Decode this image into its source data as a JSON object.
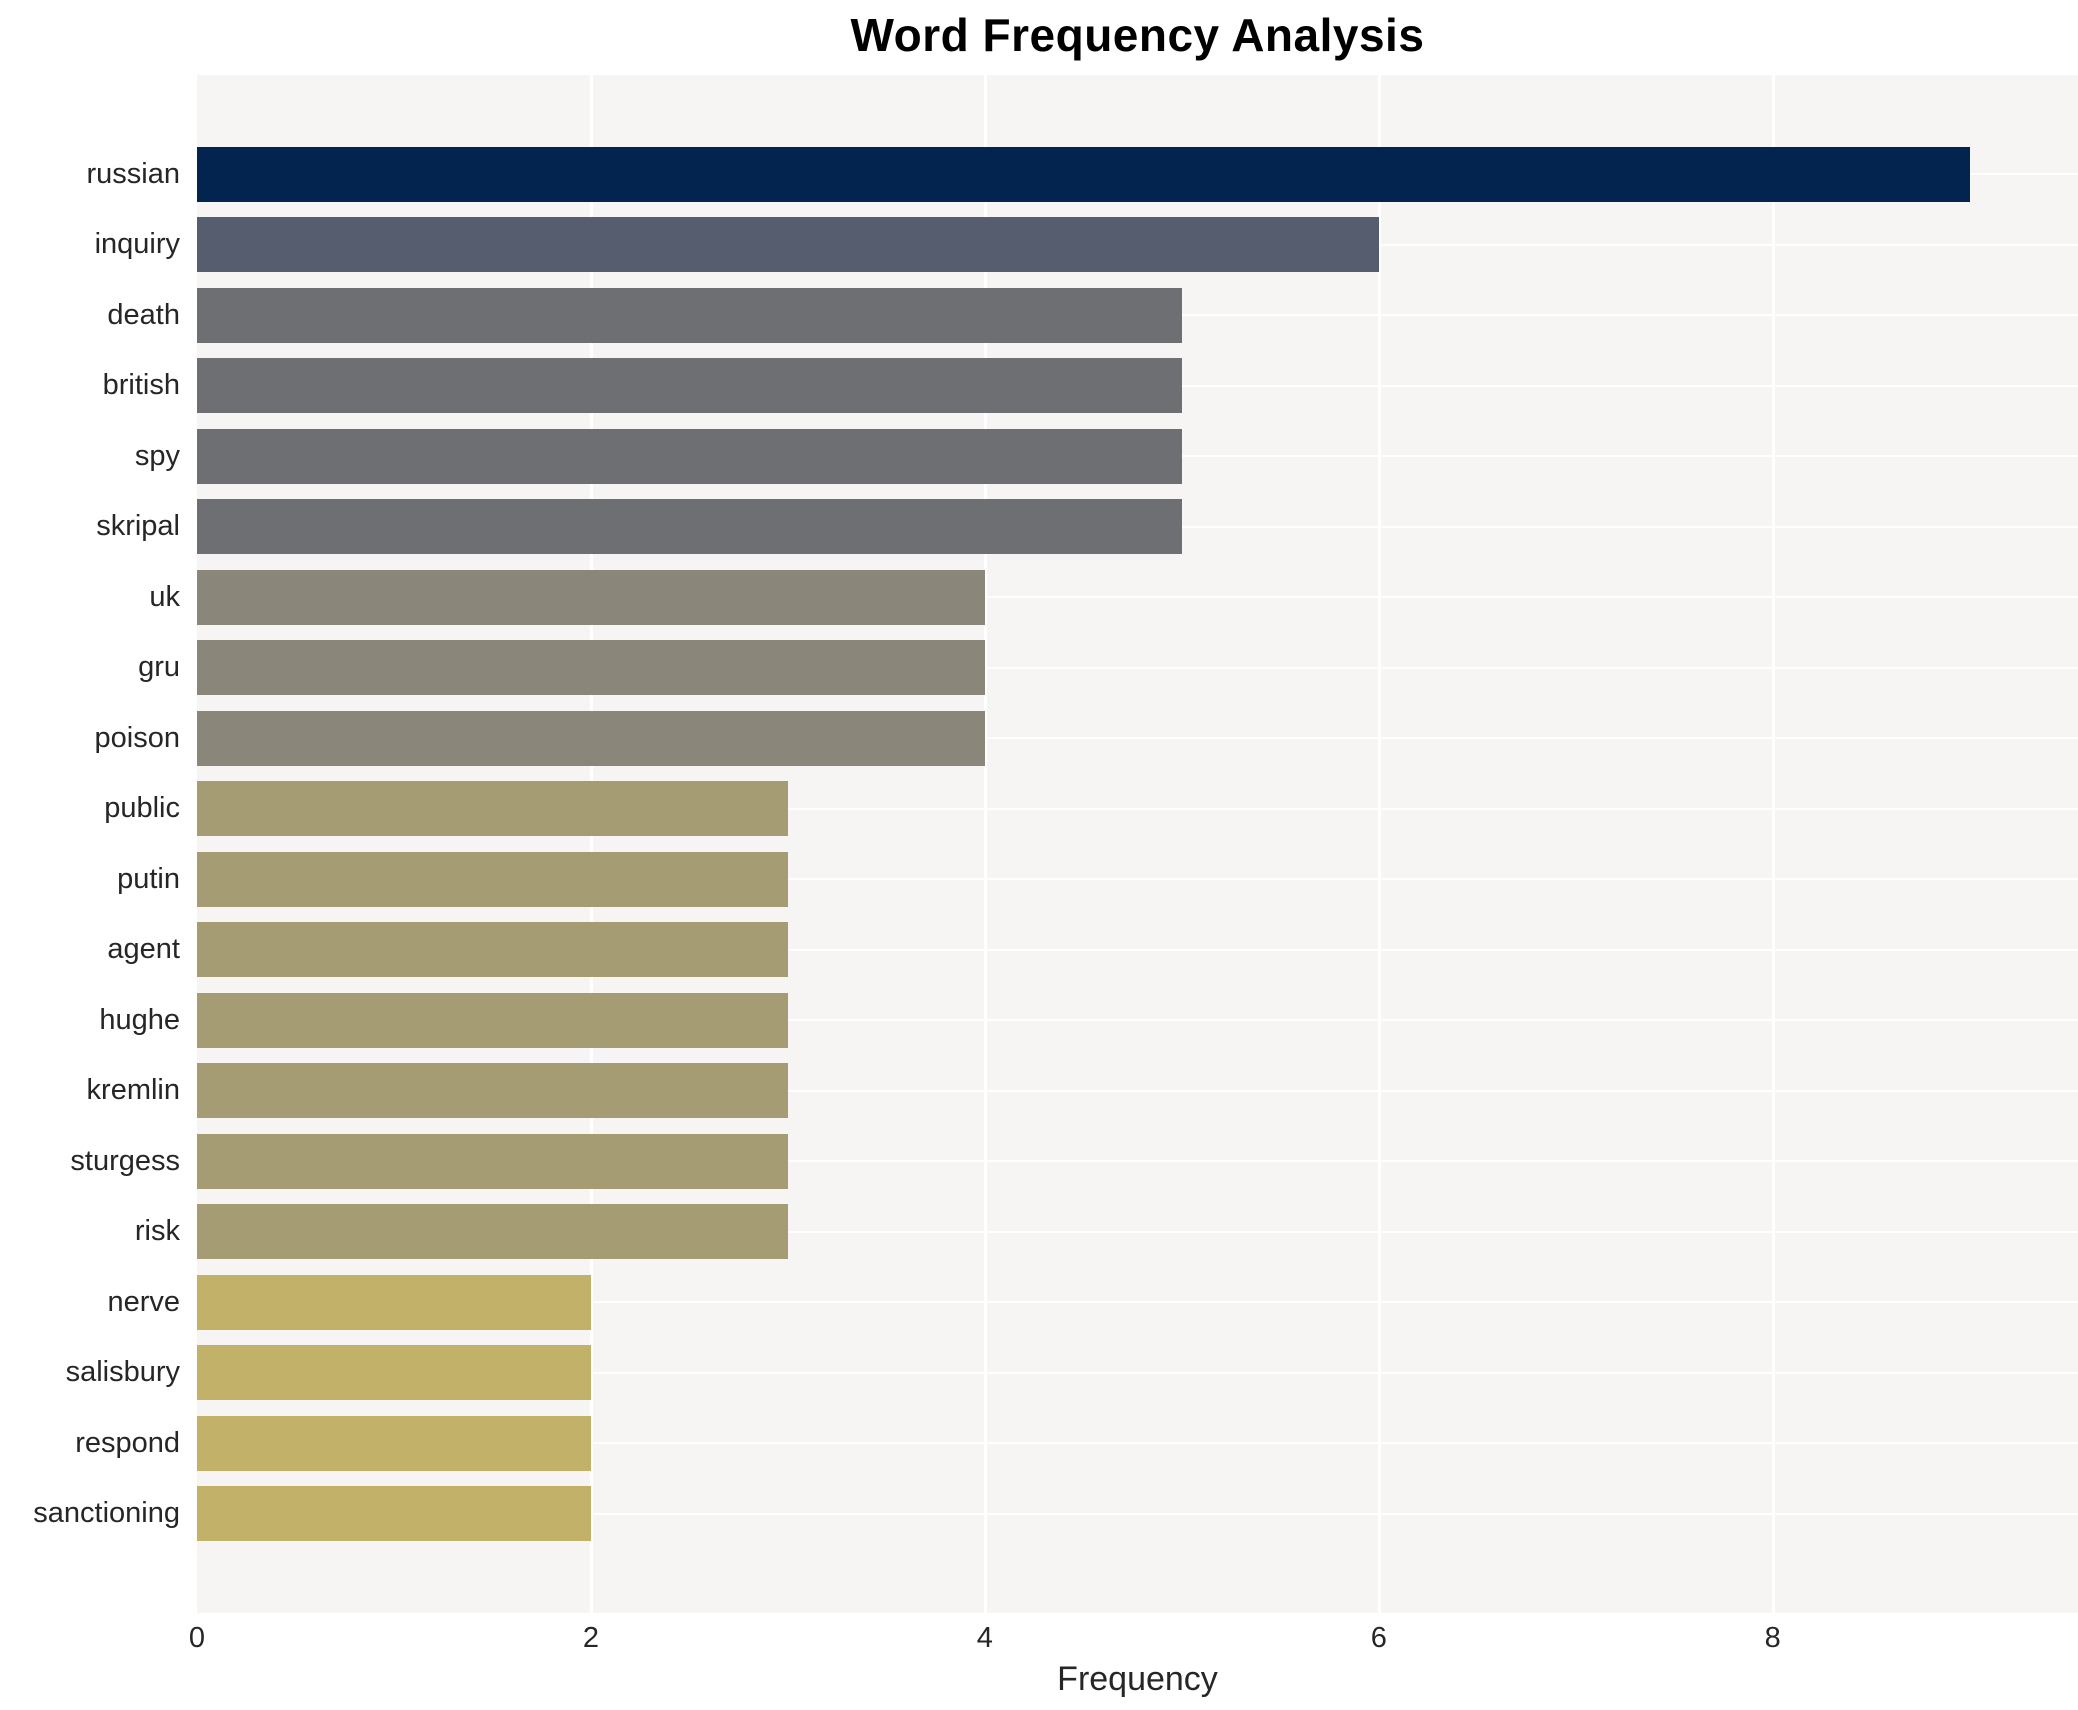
{
  "title": "Word Frequency Analysis",
  "chart_data": {
    "type": "bar",
    "orientation": "horizontal",
    "title": "Word Frequency Analysis",
    "xlabel": "Frequency",
    "ylabel": "",
    "categories": [
      "russian",
      "inquiry",
      "death",
      "british",
      "spy",
      "skripal",
      "uk",
      "gru",
      "poison",
      "public",
      "putin",
      "agent",
      "hughe",
      "kremlin",
      "sturgess",
      "risk",
      "nerve",
      "salisbury",
      "respond",
      "sanctioning"
    ],
    "values": [
      9,
      6,
      5,
      5,
      5,
      5,
      4,
      4,
      4,
      3,
      3,
      3,
      3,
      3,
      3,
      3,
      2,
      2,
      2,
      2
    ],
    "bar_colors": [
      "#03244e",
      "#565d6e",
      "#6d6f72",
      "#6d6f72",
      "#6d6f72",
      "#6d6f72",
      "#8a877a",
      "#8a877a",
      "#8a877a",
      "#a69c74",
      "#a69c74",
      "#a69c74",
      "#a69c74",
      "#a69c74",
      "#a69c74",
      "#a69c74",
      "#c2b168",
      "#c2b168",
      "#c2b168",
      "#c2b168"
    ],
    "xlim": [
      0,
      9.55
    ],
    "xticks": [
      0,
      2,
      4,
      6,
      8
    ],
    "grid": true,
    "legend_position": "none",
    "plot_background": "#f6f5f3",
    "gridline_color": "#ffffff"
  }
}
